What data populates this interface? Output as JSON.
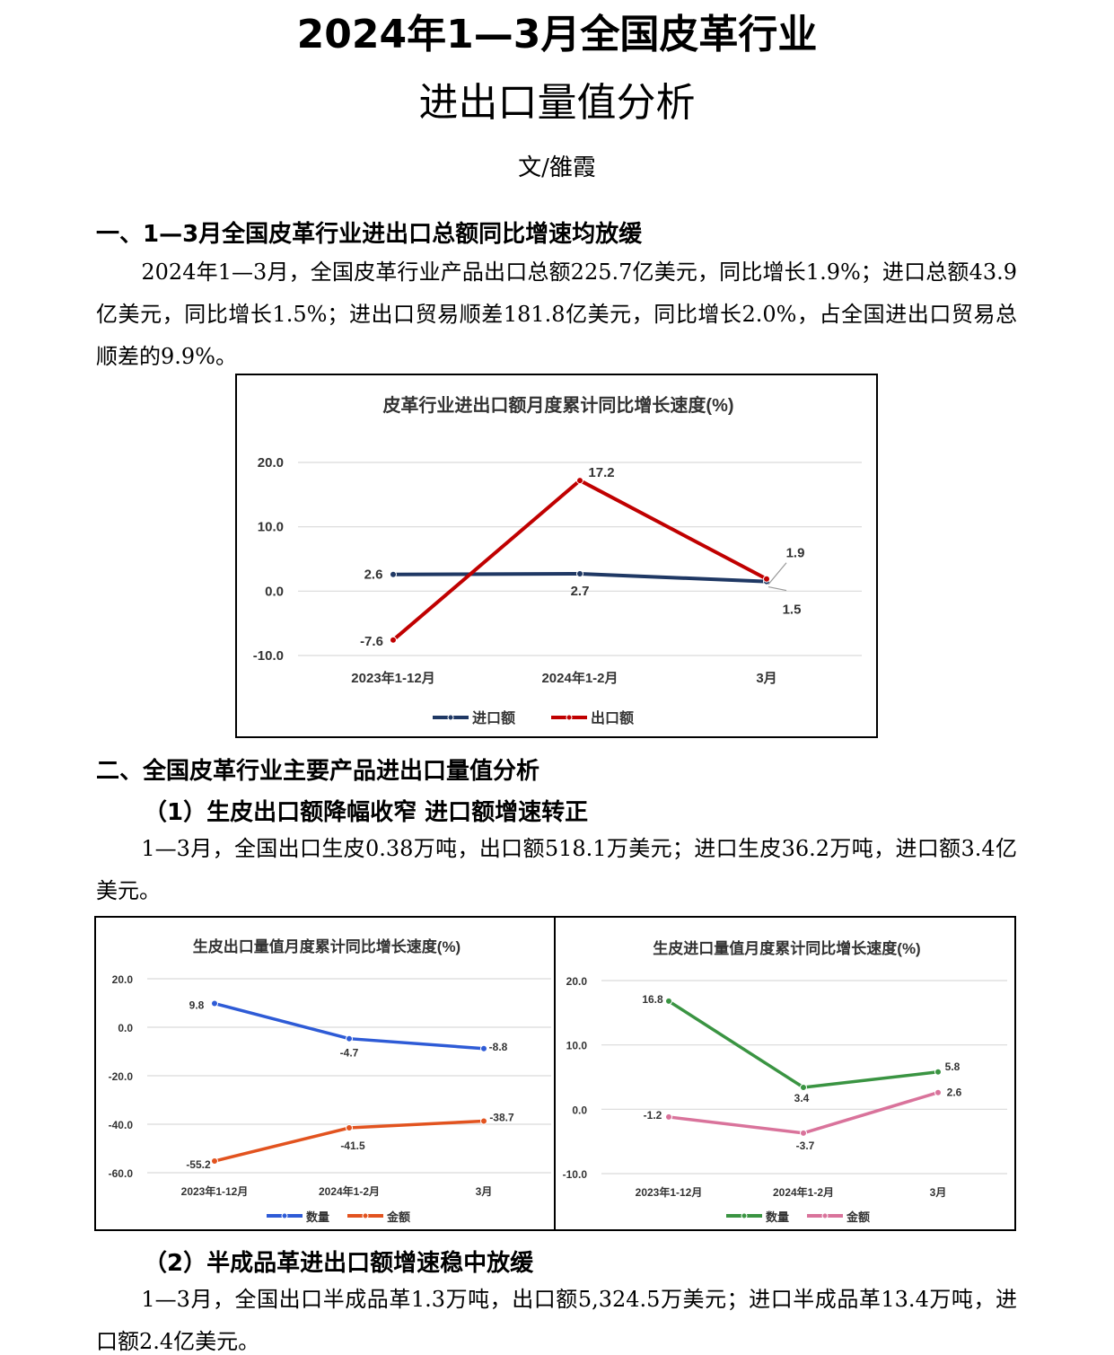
{
  "title_line1": "2024年1—3月全国皮革行业",
  "title_line2": "进出口量值分析",
  "author": "文/雒霞",
  "section1": {
    "heading": "一、1—3月全国皮革行业进出口总额同比增速均放缓",
    "paragraph": "2024年1—3月，全国皮革行业产品出口总额225.7亿美元，同比增长1.9%；进口总额43.9亿美元，同比增长1.5%；进出口贸易顺差181.8亿美元，同比增长2.0%，占全国进出口贸易总顺差的9.9%。"
  },
  "section2": {
    "heading": "二、全国皮革行业主要产品进出口量值分析",
    "sub1": "（1）生皮出口额降幅收窄  进口额增速转正",
    "para1": "1—3月，全国出口生皮0.38万吨，出口额518.1万美元；进口生皮36.2万吨，进口额3.4亿美元。",
    "sub2": "（2）半成品革进出口额增速稳中放缓",
    "para2": "1—3月，全国出口半成品革1.3万吨，出口额5,324.5万美元；进口半成品革13.4万吨，进口额2.4亿美元。"
  },
  "chart_data": [
    {
      "type": "line",
      "title": "皮革行业进出口额月度累计同比增长速度(%)",
      "categories": [
        "2023年1-12月",
        "2024年1-2月",
        "3月"
      ],
      "yticks": [
        "20.0",
        "10.0",
        "0.0",
        "-10.0"
      ],
      "ylim": [
        -10,
        20
      ],
      "legend": "bottom",
      "series": [
        {
          "name": "进口额",
          "color": "#1f3864",
          "values": [
            2.6,
            2.7,
            1.5
          ]
        },
        {
          "name": "出口额",
          "color": "#c00000",
          "values": [
            -7.6,
            17.2,
            1.9
          ]
        }
      ]
    },
    {
      "type": "line",
      "title": "生皮出口量值月度累计同比增长速度(%)",
      "categories": [
        "2023年1-12月",
        "2024年1-2月",
        "3月"
      ],
      "yticks": [
        "20.0",
        "0.0",
        "-20.0",
        "-40.0",
        "-60.0"
      ],
      "ylim": [
        -60,
        20
      ],
      "legend": "bottom",
      "series": [
        {
          "name": "数量",
          "color": "#2e5bd6",
          "values": [
            9.8,
            -4.7,
            -8.8
          ]
        },
        {
          "name": "金额",
          "color": "#e2531f",
          "values": [
            -55.2,
            -41.5,
            -38.7
          ]
        }
      ]
    },
    {
      "type": "line",
      "title": "生皮进口量值月度累计同比增长速度(%)",
      "categories": [
        "2023年1-12月",
        "2024年1-2月",
        "3月"
      ],
      "yticks": [
        "20.0",
        "10.0",
        "0.0",
        "-10.0"
      ],
      "ylim": [
        -10,
        20
      ],
      "legend": "bottom",
      "series": [
        {
          "name": "数量",
          "color": "#3a9442",
          "values": [
            16.8,
            3.4,
            5.8
          ]
        },
        {
          "name": "金额",
          "color": "#d9739b",
          "values": [
            -1.2,
            -3.7,
            2.6
          ]
        }
      ]
    }
  ]
}
